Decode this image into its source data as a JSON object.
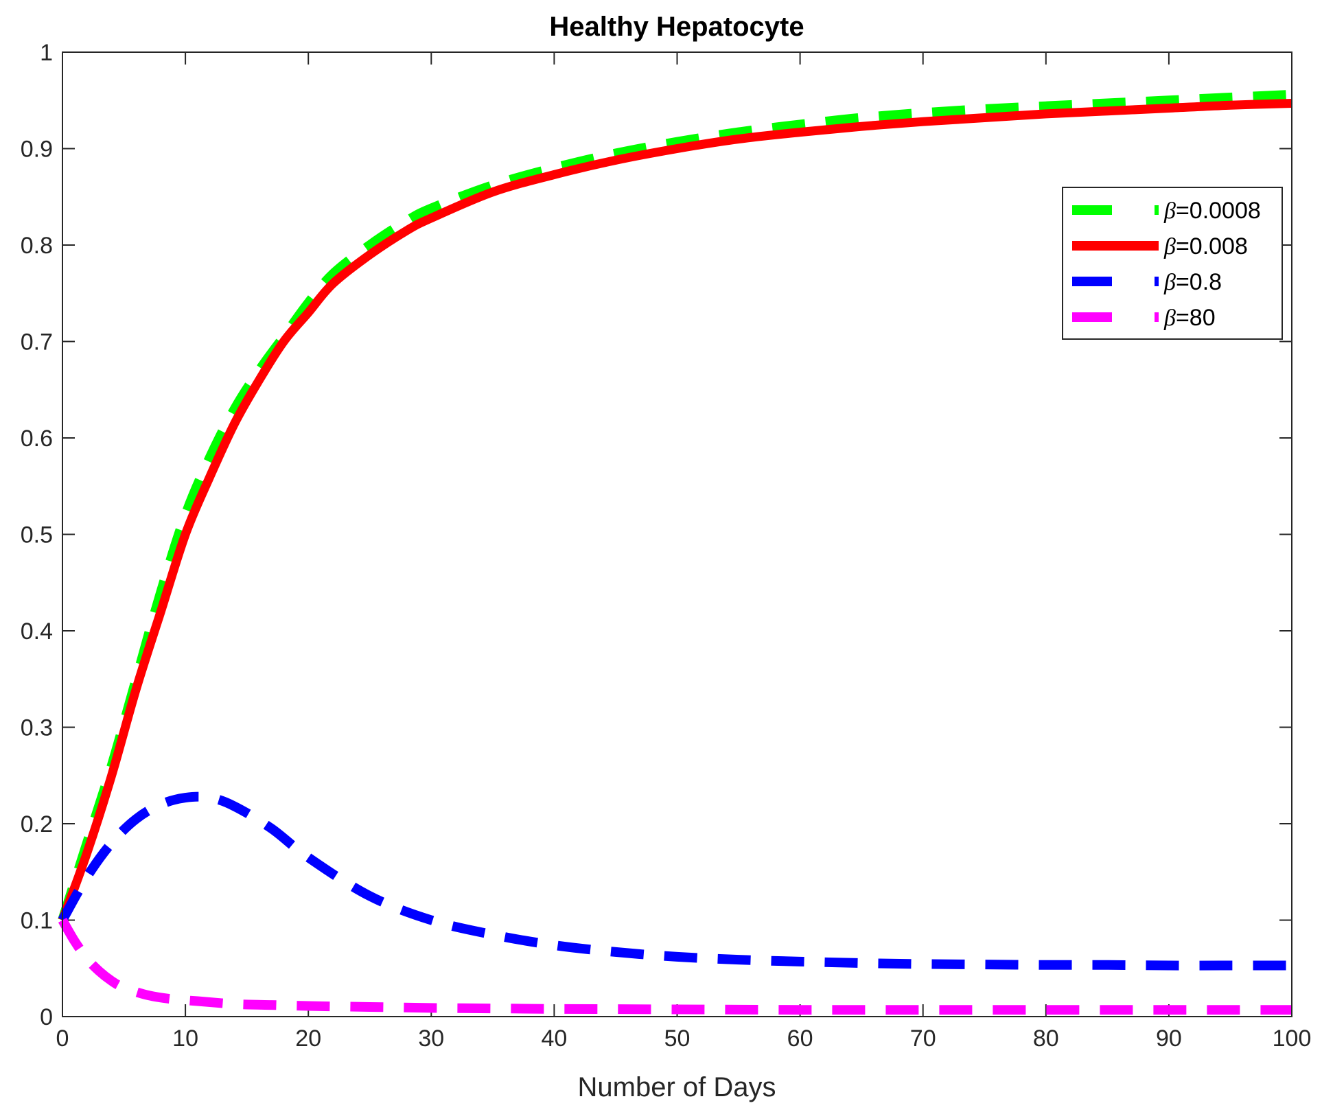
{
  "chart_data": {
    "type": "line",
    "title": "Healthy Hepatocyte",
    "xlabel": "Number of Days",
    "ylabel": "",
    "xlim": [
      0,
      100
    ],
    "ylim": [
      0,
      1
    ],
    "xticks": [
      0,
      10,
      20,
      30,
      40,
      50,
      60,
      70,
      80,
      90,
      100
    ],
    "yticks": [
      0,
      0.1,
      0.2,
      0.3,
      0.4,
      0.5,
      0.6,
      0.7,
      0.8,
      0.9,
      1
    ],
    "xtick_labels": [
      "0",
      "10",
      "20",
      "30",
      "40",
      "50",
      "60",
      "70",
      "80",
      "90",
      "100"
    ],
    "ytick_labels": [
      "0",
      "0.1",
      "0.2",
      "0.3",
      "0.4",
      "0.5",
      "0.6",
      "0.7",
      "0.8",
      "0.9",
      "1"
    ],
    "legend_position": "top-right",
    "grid": false,
    "series": [
      {
        "name": "β=0.0008",
        "symbol": "β",
        "value_label": "=0.0008",
        "color": "#00ff00",
        "style": "dashed",
        "x": [
          0,
          2,
          4,
          6,
          8,
          10,
          12,
          14,
          16,
          18,
          20,
          22,
          25,
          28,
          30,
          35,
          40,
          45,
          50,
          55,
          60,
          65,
          70,
          75,
          80,
          85,
          90,
          95,
          100
        ],
        "y": [
          0.1,
          0.18,
          0.26,
          0.35,
          0.44,
          0.52,
          0.58,
          0.63,
          0.67,
          0.705,
          0.74,
          0.77,
          0.8,
          0.825,
          0.838,
          0.862,
          0.88,
          0.895,
          0.907,
          0.917,
          0.925,
          0.932,
          0.937,
          0.941,
          0.944,
          0.947,
          0.95,
          0.953,
          0.956
        ]
      },
      {
        "name": "β=0.008",
        "symbol": "β",
        "value_label": "=0.008",
        "color": "#ff0000",
        "style": "solid",
        "x": [
          0,
          2,
          4,
          6,
          8,
          10,
          12,
          14,
          16,
          18,
          20,
          22,
          25,
          28,
          30,
          35,
          40,
          45,
          50,
          55,
          60,
          65,
          70,
          75,
          80,
          85,
          90,
          95,
          100
        ],
        "y": [
          0.1,
          0.17,
          0.25,
          0.34,
          0.42,
          0.5,
          0.56,
          0.615,
          0.66,
          0.7,
          0.73,
          0.76,
          0.79,
          0.815,
          0.828,
          0.855,
          0.873,
          0.888,
          0.9,
          0.91,
          0.917,
          0.923,
          0.928,
          0.932,
          0.936,
          0.939,
          0.942,
          0.945,
          0.947
        ]
      },
      {
        "name": "β=0.8",
        "symbol": "β",
        "value_label": "=0.8",
        "color": "#0000ff",
        "style": "dashed",
        "x": [
          0,
          2,
          4,
          6,
          8,
          10,
          12,
          14,
          17,
          20,
          25,
          30,
          35,
          40,
          45,
          50,
          55,
          60,
          65,
          70,
          75,
          80,
          85,
          90,
          95,
          100
        ],
        "y": [
          0.1,
          0.145,
          0.18,
          0.205,
          0.22,
          0.227,
          0.227,
          0.218,
          0.195,
          0.165,
          0.125,
          0.1,
          0.085,
          0.074,
          0.067,
          0.062,
          0.059,
          0.057,
          0.0555,
          0.0545,
          0.054,
          0.0535,
          0.0535,
          0.053,
          0.053,
          0.053
        ]
      },
      {
        "name": "β=80",
        "symbol": "β",
        "value_label": "=80",
        "color": "#ff00ff",
        "style": "dashed",
        "x": [
          0,
          1,
          2,
          3,
          4,
          5,
          7,
          9,
          11,
          14,
          17,
          20,
          25,
          30,
          35,
          40,
          50,
          60,
          70,
          80,
          90,
          100
        ],
        "y": [
          0.1,
          0.078,
          0.06,
          0.047,
          0.037,
          0.03,
          0.022,
          0.018,
          0.016,
          0.013,
          0.012,
          0.011,
          0.01,
          0.009,
          0.0085,
          0.008,
          0.0075,
          0.007,
          0.007,
          0.007,
          0.007,
          0.007
        ]
      }
    ]
  }
}
